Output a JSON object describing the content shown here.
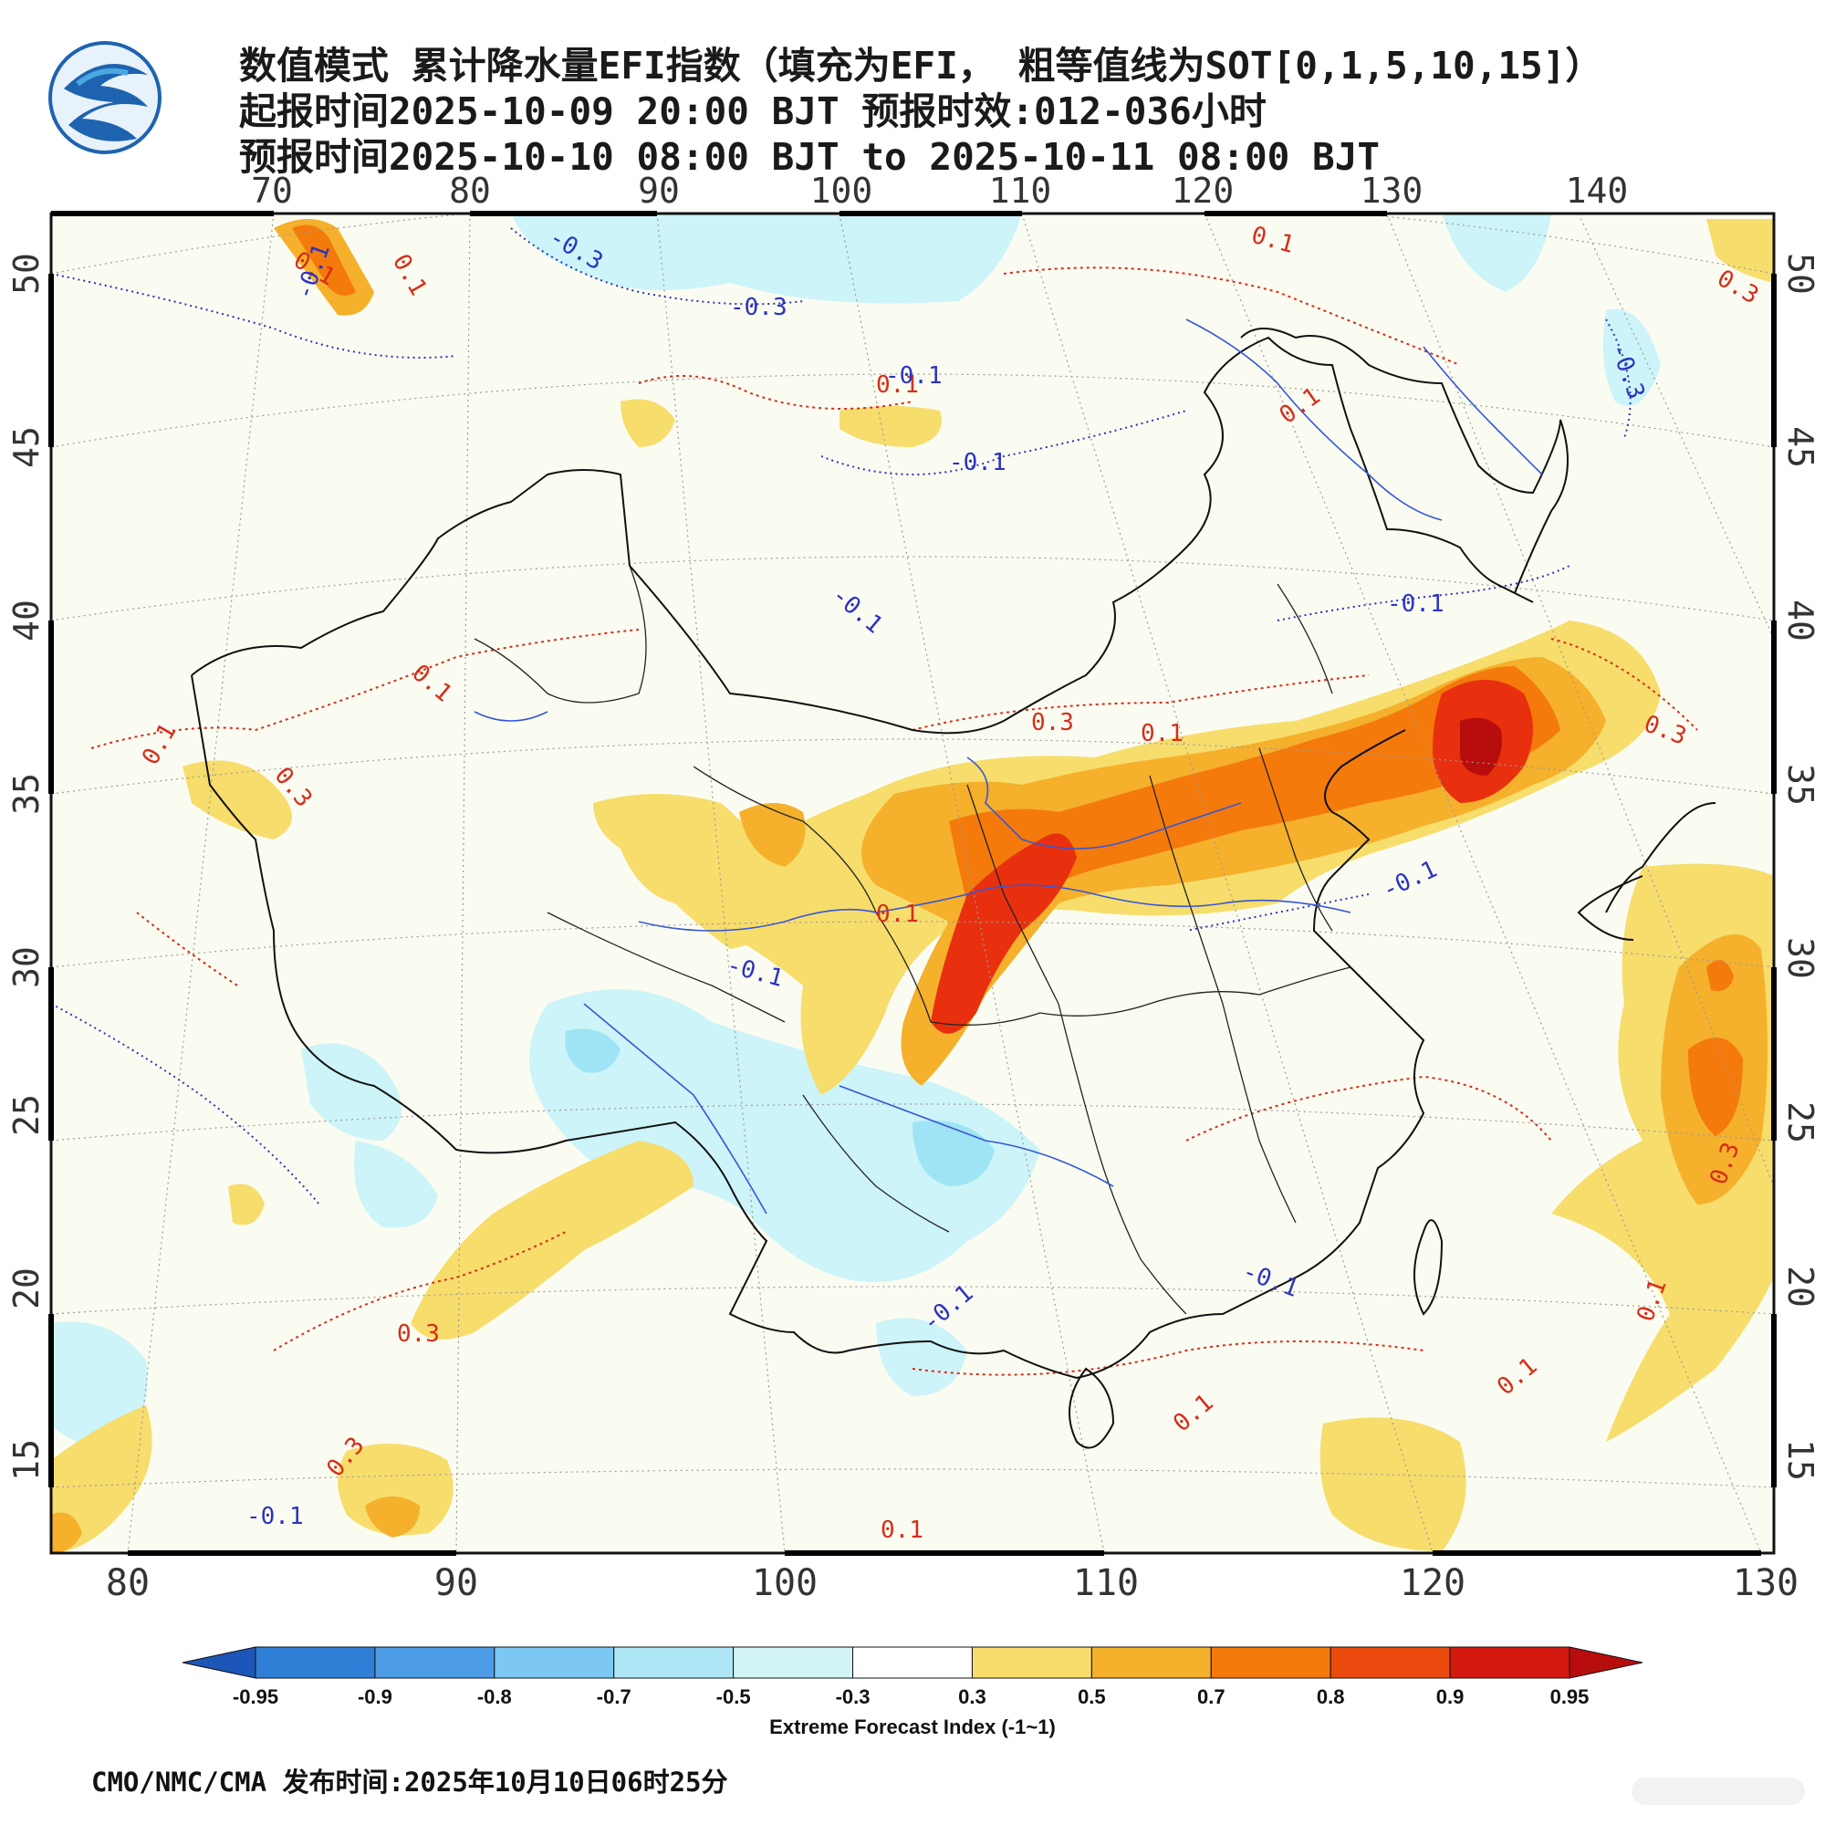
{
  "header": {
    "line1": "数值模式 累计降水量EFI指数（填充为EFI， 粗等值线为SOT[0,1,5,10,15]）",
    "line2": "起报时间2025-10-09 20:00 BJT 预报时效:012-036小时",
    "line3": "预报时间2025-10-10 08:00 BJT to 2025-10-11 08:00 BJT"
  },
  "logo": {
    "name": "cma-logo-icon",
    "colors": [
      "#1e63b0",
      "#4aa8e0"
    ]
  },
  "map": {
    "top_lon_ticks": [
      "70",
      "80",
      "90",
      "100",
      "110",
      "120",
      "130",
      "140"
    ],
    "bottom_lon_ticks": [
      "80",
      "90",
      "100",
      "110",
      "120",
      "130"
    ],
    "left_lat_ticks": [
      "50",
      "45",
      "40",
      "35",
      "30",
      "25",
      "20",
      "15"
    ],
    "right_lat_ticks": [
      "50",
      "45",
      "40",
      "35",
      "30",
      "25",
      "20",
      "15"
    ],
    "contour_labels_red": [
      "0.1",
      "0.1",
      "0.1",
      "0.3",
      "0.1",
      "0.1",
      "0.1",
      "0.1",
      "0.3",
      "0.3",
      "0.1",
      "0.3",
      "0.1",
      "0.3",
      "0.1",
      "0.3",
      "0.3",
      "0.1",
      "0.1",
      "0.1"
    ],
    "contour_labels_blue": [
      "-0.3",
      "-0.3",
      "-0.1",
      "-0.1",
      "-0.1",
      "-0.1",
      "-0.1",
      "-0.1",
      "-0.3",
      "-0.1",
      "-0.1",
      "-0.1",
      "-0.1"
    ],
    "colors": {
      "efi_05": "#f7dd6c",
      "efi_07": "#f5b02c",
      "efi_08": "#f47a0c",
      "efi_09": "#e8300e",
      "efi_095": "#b80d0d",
      "efi_neg03": "#cdf4f8",
      "efi_neg05": "#9fe4f4",
      "background": "#fbfcf1"
    }
  },
  "colorbar": {
    "tick_labels": [
      "-0.95",
      "-0.9",
      "-0.8",
      "-0.7",
      "-0.5",
      "-0.3",
      "0.3",
      "0.5",
      "0.7",
      "0.8",
      "0.9",
      "0.95"
    ],
    "segment_colors": [
      "#1c56b8",
      "#2f7fd6",
      "#4d9de6",
      "#7cc8f3",
      "#aee6f6",
      "#d2f4f6",
      "#ffffff",
      "#f7dd6c",
      "#f5b02c",
      "#f47a0c",
      "#ea4a0e",
      "#d3190f",
      "#b80d0d"
    ],
    "caption": "Extreme Forecast Index (-1~1)"
  },
  "footer": {
    "text": "CMO/NMC/CMA 发布时间:2025年10月10日06时25分"
  }
}
